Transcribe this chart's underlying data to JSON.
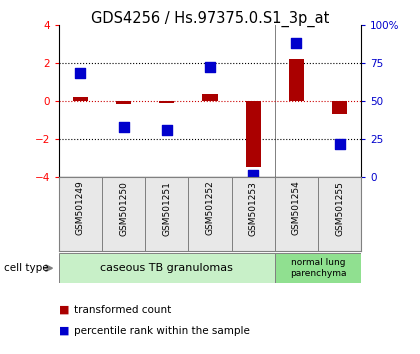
{
  "title": "GDS4256 / Hs.97375.0.S1_3p_at",
  "samples": [
    "GSM501249",
    "GSM501250",
    "GSM501251",
    "GSM501252",
    "GSM501253",
    "GSM501254",
    "GSM501255"
  ],
  "transformed_count": [
    0.2,
    -0.15,
    -0.1,
    0.35,
    -3.5,
    2.2,
    -0.7
  ],
  "pct_values": [
    68,
    33,
    31,
    72,
    1,
    88,
    22
  ],
  "ylim": [
    -4,
    4
  ],
  "yticks_left": [
    -4,
    -2,
    0,
    2,
    4
  ],
  "yticks_right": [
    0,
    25,
    50,
    75,
    100
  ],
  "right_ylim": [
    0,
    100
  ],
  "hline_dotted": [
    2,
    -2
  ],
  "bar_color": "#aa0000",
  "scatter_color": "#0000cc",
  "dotted_color": "#000000",
  "zero_line_color": "#cc0000",
  "group1_label": "caseous TB granulomas",
  "group2_label": "normal lung\nparenchyma",
  "group1_color": "#c8f0c8",
  "group2_color": "#90e090",
  "cell_type_label": "cell type",
  "legend_red_label": "transformed count",
  "legend_blue_label": "percentile rank within the sample",
  "bar_width": 0.35,
  "scatter_size": 45,
  "bg_color": "#ffffff",
  "title_fontsize": 10.5,
  "tick_fontsize": 7.5,
  "label_fontsize": 6.5,
  "group_fontsize": 8,
  "legend_fontsize": 7.5
}
